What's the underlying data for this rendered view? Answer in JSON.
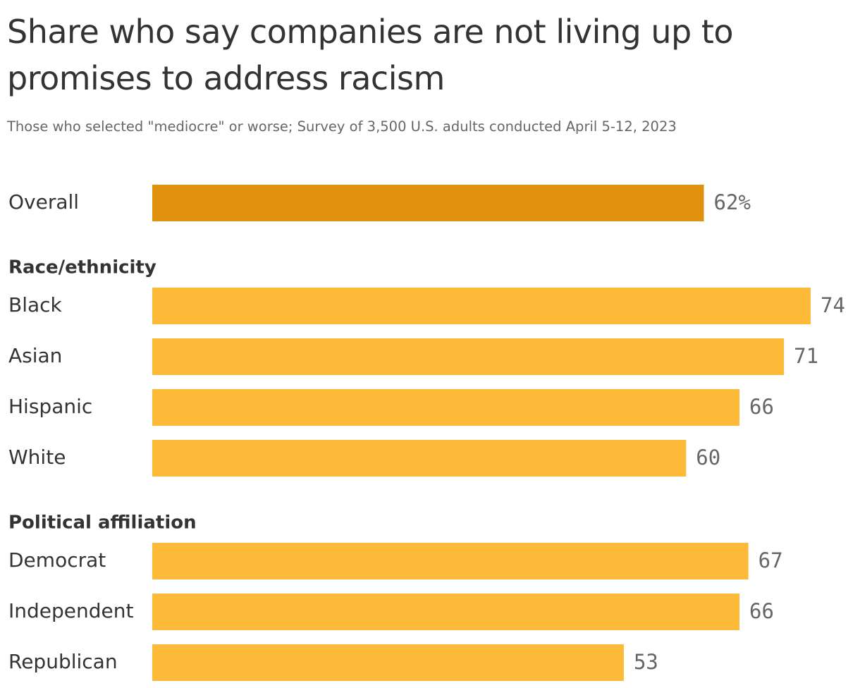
{
  "chart_data": {
    "type": "bar",
    "orientation": "horizontal",
    "title": "Share who say companies are not living up to promises to address racism",
    "subtitle": "Those who selected \"mediocre\" or worse; Survey of 3,500 U.S. adults conducted April 5-12, 2023",
    "xlim": [
      0,
      74
    ],
    "grid": false,
    "legend": "none",
    "groups": [
      {
        "name": "",
        "color": "#e0920f",
        "rows": [
          {
            "category": "Overall",
            "value": 62,
            "label": "62%"
          }
        ]
      },
      {
        "name": "Race/ethnicity",
        "color": "#fdba38",
        "rows": [
          {
            "category": "Black",
            "value": 74,
            "label": "74"
          },
          {
            "category": "Asian",
            "value": 71,
            "label": "71"
          },
          {
            "category": "Hispanic",
            "value": 66,
            "label": "66"
          },
          {
            "category": "White",
            "value": 60,
            "label": "60"
          }
        ]
      },
      {
        "name": "Political affiliation",
        "color": "#fdba38",
        "rows": [
          {
            "category": "Democrat",
            "value": 67,
            "label": "67"
          },
          {
            "category": "Independent",
            "value": 66,
            "label": "66"
          },
          {
            "category": "Republican",
            "value": 53,
            "label": "53"
          }
        ]
      }
    ]
  }
}
